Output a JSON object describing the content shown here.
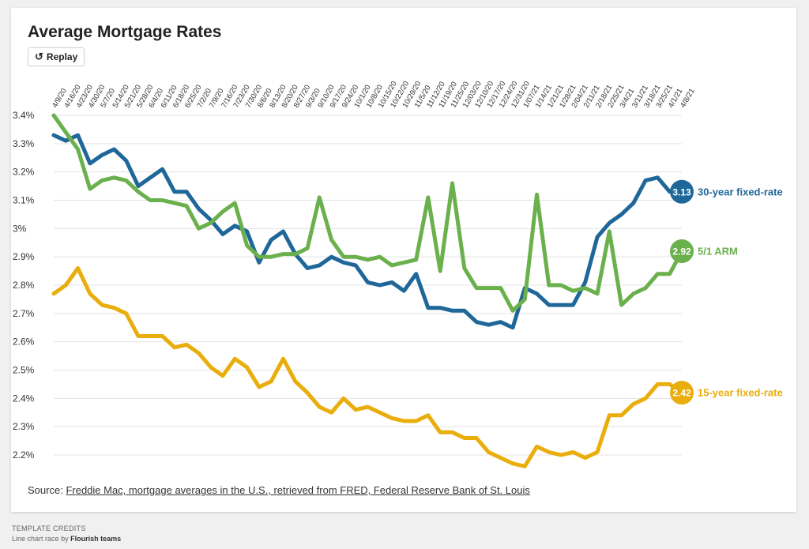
{
  "title": "Average Mortgage Rates",
  "replay_label": "Replay",
  "source_prefix": "Source:",
  "source_link": "Freddie Mac, mortgage averages in the U.S., retrieved from FRED, Federal Reserve Bank of St. Louis",
  "credits": {
    "heading": "TEMPLATE CREDITS",
    "line_prefix": "Line chart race",
    "by": "by",
    "author": "Flourish teams"
  },
  "colors": {
    "thirty": "#1f6799",
    "arm": "#6ab04c",
    "fifteen": "#e9ad0c",
    "grid": "#e3e3e3",
    "axis_text": "#333333"
  },
  "chart_data": {
    "type": "line",
    "title": "Average Mortgage Rates",
    "xlabel": "",
    "ylabel": "",
    "ylim": [
      2.2,
      3.4
    ],
    "yticks": [
      3.4,
      3.3,
      3.2,
      3.1,
      3.0,
      2.9,
      2.8,
      2.7,
      2.6,
      2.5,
      2.4,
      2.3,
      2.2
    ],
    "ytick_labels": [
      "3.4%",
      "3.3%",
      "3.2%",
      "3.1%",
      "3%",
      "2.9%",
      "2.8%",
      "2.7%",
      "2.6%",
      "2.5%",
      "2.4%",
      "2.3%",
      "2.2%"
    ],
    "grid": true,
    "categories": [
      "4/9/20",
      "4/16/20",
      "4/23/20",
      "4/30/20",
      "5/7/20",
      "5/14/20",
      "5/21/20",
      "5/28/20",
      "6/4/20",
      "6/11/20",
      "6/18/20",
      "6/25/20",
      "7/2/20",
      "7/9/20",
      "7/16/20",
      "7/23/20",
      "7/30/20",
      "8/6/20",
      "8/13/20",
      "8/20/20",
      "8/27/20",
      "9/3/20",
      "9/10/20",
      "9/17/20",
      "9/24/20",
      "10/1/20",
      "10/8/20",
      "10/15/20",
      "10/22/20",
      "10/29/20",
      "11/5/20",
      "11/12/20",
      "11/19/20",
      "11/25/20",
      "12/03/20",
      "12/10/20",
      "12/17/20",
      "12/24/20",
      "12/31/20",
      "1/07/21",
      "1/14/21",
      "1/21/21",
      "1/28/21",
      "2/04/21",
      "2/11/21",
      "2/18/21",
      "2/25/21",
      "3/4/21",
      "3/11/21",
      "3/18/21",
      "3/25/21",
      "4/1/21",
      "4/8/21"
    ],
    "series": [
      {
        "name": "30-year fixed-rate",
        "label": "30-year fixed-rate",
        "final_value": "3.13",
        "color": "#1f6799",
        "values": [
          3.33,
          3.31,
          3.33,
          3.23,
          3.26,
          3.28,
          3.24,
          3.15,
          3.18,
          3.21,
          3.13,
          3.13,
          3.07,
          3.03,
          2.98,
          3.01,
          2.99,
          2.88,
          2.96,
          2.99,
          2.91,
          2.86,
          2.87,
          2.9,
          2.88,
          2.87,
          2.81,
          2.8,
          2.81,
          2.78,
          2.84,
          2.72,
          2.72,
          2.71,
          2.71,
          2.67,
          2.66,
          2.67,
          2.65,
          2.79,
          2.77,
          2.73,
          2.73,
          2.73,
          2.81,
          2.97,
          3.02,
          3.05,
          3.09,
          3.17,
          3.18,
          3.13,
          3.13
        ]
      },
      {
        "name": "5/1 ARM",
        "label": "5/1 ARM",
        "final_value": "2.92",
        "color": "#6ab04c",
        "values": [
          3.4,
          3.34,
          3.28,
          3.14,
          3.17,
          3.18,
          3.17,
          3.13,
          3.1,
          3.1,
          3.09,
          3.08,
          3.0,
          3.02,
          3.06,
          3.09,
          2.94,
          2.9,
          2.9,
          2.91,
          2.91,
          2.93,
          3.11,
          2.96,
          2.9,
          2.9,
          2.89,
          2.9,
          2.87,
          2.88,
          2.89,
          3.11,
          2.85,
          3.16,
          2.86,
          2.79,
          2.79,
          2.79,
          2.71,
          2.75,
          3.12,
          2.8,
          2.8,
          2.78,
          2.79,
          2.77,
          2.99,
          2.73,
          2.77,
          2.79,
          2.84,
          2.84,
          2.92
        ]
      },
      {
        "name": "15-year fixed-rate",
        "label": "15-year fixed-rate",
        "final_value": "2.42",
        "color": "#e9ad0c",
        "values": [
          2.77,
          2.8,
          2.86,
          2.77,
          2.73,
          2.72,
          2.7,
          2.62,
          2.62,
          2.62,
          2.58,
          2.59,
          2.56,
          2.51,
          2.48,
          2.54,
          2.51,
          2.44,
          2.46,
          2.54,
          2.46,
          2.42,
          2.37,
          2.35,
          2.4,
          2.36,
          2.37,
          2.35,
          2.33,
          2.32,
          2.32,
          2.34,
          2.28,
          2.28,
          2.26,
          2.26,
          2.21,
          2.19,
          2.17,
          2.16,
          2.23,
          2.21,
          2.2,
          2.21,
          2.19,
          2.21,
          2.34,
          2.34,
          2.38,
          2.4,
          2.45,
          2.45,
          2.42
        ]
      }
    ]
  }
}
